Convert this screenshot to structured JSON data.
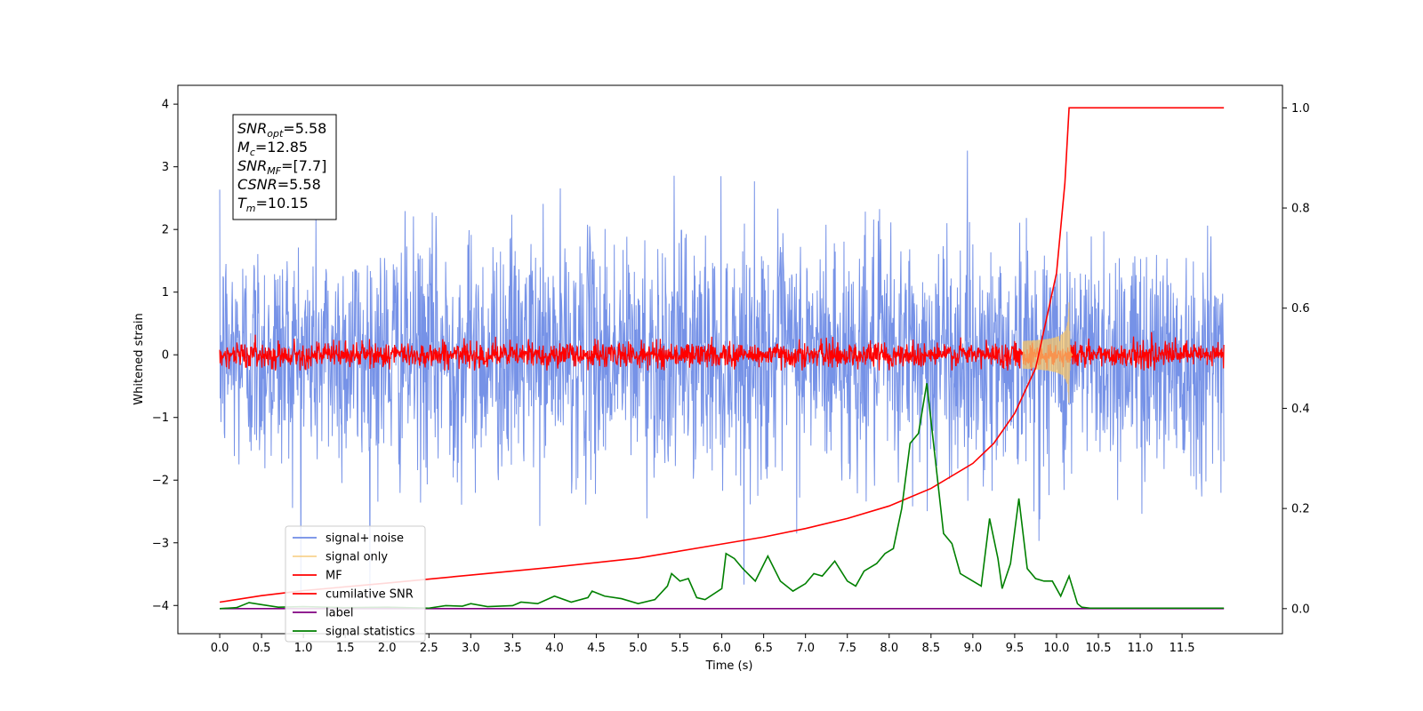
{
  "chart_data": {
    "type": "line",
    "xlabel": "Time (s)",
    "ylabel": "Whitened strain",
    "xlim": [
      -0.5,
      12.7
    ],
    "ylim_left": [
      -4.45,
      4.3
    ],
    "ylim_right": [
      -0.05,
      1.045
    ],
    "x_ticks": [
      0.0,
      0.5,
      1.0,
      1.5,
      2.0,
      2.5,
      3.0,
      3.5,
      4.0,
      4.5,
      5.0,
      5.5,
      6.0,
      6.5,
      7.0,
      7.5,
      8.0,
      8.5,
      9.0,
      9.5,
      10.0,
      10.5,
      11.0,
      11.5
    ],
    "x_tick_labels": [
      "0.0",
      "0.5",
      "1.0",
      "1.5",
      "2.0",
      "2.5",
      "3.0",
      "3.5",
      "4.0",
      "4.5",
      "5.0",
      "5.5",
      "6.0",
      "6.5",
      "7.0",
      "7.5",
      "8.0",
      "8.5",
      "9.0",
      "9.5",
      "10.0",
      "10.5",
      "11.0",
      "11.5"
    ],
    "y_left_ticks": [
      -4,
      -3,
      -2,
      -1,
      0,
      1,
      2,
      3,
      4
    ],
    "y_left_tick_labels": [
      "−4",
      "−3",
      "−2",
      "−1",
      "0",
      "1",
      "2",
      "3",
      "4"
    ],
    "y_right_ticks": [
      0.0,
      0.2,
      0.4,
      0.6,
      0.8,
      1.0
    ],
    "y_right_tick_labels": [
      "0.0",
      "0.2",
      "0.4",
      "0.6",
      "0.8",
      "1.0"
    ],
    "legend_position": "bottom-left",
    "grid": false,
    "annotation": {
      "lines": [
        {
          "base": "SNR",
          "sub": "opt",
          "rest": "=5.58"
        },
        {
          "base": "M",
          "sub": "c",
          "rest": "=12.85"
        },
        {
          "base": "SNR",
          "sub": "MF",
          "rest": "=[7.7]"
        },
        {
          "base": "CSNR",
          "sub": "",
          "rest": "=5.58"
        },
        {
          "base": "T",
          "sub": "m",
          "rest": "=10.15"
        }
      ]
    },
    "series": [
      {
        "name": "signal+ noise",
        "color": "#6f8ce6",
        "axis": "left",
        "style": "noise",
        "x_range": [
          0.0,
          12.0
        ],
        "typical_range": [
          -2.3,
          2.3
        ],
        "extreme_range": [
          -3.9,
          3.9
        ]
      },
      {
        "name": "signal only",
        "color": "#f5c46a",
        "axis": "left",
        "style": "chirp",
        "x_range": [
          0.0,
          10.15
        ],
        "peak_amplitude": 0.85,
        "merger_time": 10.15
      },
      {
        "name": "MF",
        "color": "#ff0000",
        "axis": "left",
        "style": "noise",
        "x_range": [
          0.0,
          12.0
        ],
        "typical_range": [
          -0.2,
          0.3
        ],
        "extreme_range": [
          -0.25,
          0.5
        ]
      },
      {
        "name": "cumilative SNR",
        "color": "#ff0000",
        "axis": "right",
        "points": [
          [
            0.0,
            0.013
          ],
          [
            0.5,
            0.026
          ],
          [
            1.0,
            0.036
          ],
          [
            2.0,
            0.051
          ],
          [
            3.0,
            0.067
          ],
          [
            4.0,
            0.083
          ],
          [
            5.0,
            0.101
          ],
          [
            6.0,
            0.129
          ],
          [
            6.5,
            0.143
          ],
          [
            7.0,
            0.16
          ],
          [
            7.5,
            0.18
          ],
          [
            8.0,
            0.205
          ],
          [
            8.5,
            0.24
          ],
          [
            9.0,
            0.29
          ],
          [
            9.25,
            0.33
          ],
          [
            9.5,
            0.39
          ],
          [
            9.75,
            0.48
          ],
          [
            10.0,
            0.67
          ],
          [
            10.1,
            0.85
          ],
          [
            10.15,
            1.0
          ],
          [
            12.0,
            1.0
          ]
        ]
      },
      {
        "name": "label",
        "color": "#800080",
        "axis": "right",
        "points": [
          [
            0.0,
            0.0
          ],
          [
            12.0,
            0.0
          ]
        ]
      },
      {
        "name": "signal statistics",
        "color": "#008000",
        "axis": "right",
        "points": [
          [
            0.0,
            0.0
          ],
          [
            0.2,
            0.002
          ],
          [
            0.35,
            0.012
          ],
          [
            0.5,
            0.008
          ],
          [
            0.7,
            0.003
          ],
          [
            1.0,
            0.004
          ],
          [
            1.5,
            0.002
          ],
          [
            2.0,
            0.003
          ],
          [
            2.5,
            0.001
          ],
          [
            2.7,
            0.006
          ],
          [
            2.9,
            0.005
          ],
          [
            3.0,
            0.01
          ],
          [
            3.2,
            0.004
          ],
          [
            3.5,
            0.006
          ],
          [
            3.6,
            0.013
          ],
          [
            3.8,
            0.01
          ],
          [
            4.0,
            0.025
          ],
          [
            4.2,
            0.013
          ],
          [
            4.4,
            0.022
          ],
          [
            4.45,
            0.035
          ],
          [
            4.6,
            0.025
          ],
          [
            4.8,
            0.02
          ],
          [
            5.0,
            0.01
          ],
          [
            5.2,
            0.018
          ],
          [
            5.35,
            0.045
          ],
          [
            5.4,
            0.07
          ],
          [
            5.5,
            0.055
          ],
          [
            5.6,
            0.06
          ],
          [
            5.7,
            0.022
          ],
          [
            5.8,
            0.018
          ],
          [
            6.0,
            0.04
          ],
          [
            6.05,
            0.11
          ],
          [
            6.15,
            0.1
          ],
          [
            6.25,
            0.08
          ],
          [
            6.4,
            0.055
          ],
          [
            6.55,
            0.105
          ],
          [
            6.7,
            0.055
          ],
          [
            6.85,
            0.035
          ],
          [
            7.0,
            0.05
          ],
          [
            7.1,
            0.07
          ],
          [
            7.2,
            0.065
          ],
          [
            7.35,
            0.095
          ],
          [
            7.5,
            0.055
          ],
          [
            7.6,
            0.045
          ],
          [
            7.7,
            0.075
          ],
          [
            7.85,
            0.09
          ],
          [
            7.95,
            0.11
          ],
          [
            8.05,
            0.12
          ],
          [
            8.15,
            0.2
          ],
          [
            8.25,
            0.33
          ],
          [
            8.35,
            0.35
          ],
          [
            8.45,
            0.45
          ],
          [
            8.55,
            0.3
          ],
          [
            8.65,
            0.15
          ],
          [
            8.75,
            0.13
          ],
          [
            8.85,
            0.07
          ],
          [
            9.0,
            0.055
          ],
          [
            9.1,
            0.045
          ],
          [
            9.2,
            0.18
          ],
          [
            9.3,
            0.1
          ],
          [
            9.35,
            0.04
          ],
          [
            9.45,
            0.09
          ],
          [
            9.55,
            0.22
          ],
          [
            9.65,
            0.08
          ],
          [
            9.75,
            0.06
          ],
          [
            9.85,
            0.055
          ],
          [
            9.95,
            0.055
          ],
          [
            10.05,
            0.025
          ],
          [
            10.15,
            0.065
          ],
          [
            10.25,
            0.01
          ],
          [
            10.3,
            0.003
          ],
          [
            10.4,
            0.001
          ],
          [
            12.0,
            0.001
          ]
        ]
      }
    ]
  }
}
